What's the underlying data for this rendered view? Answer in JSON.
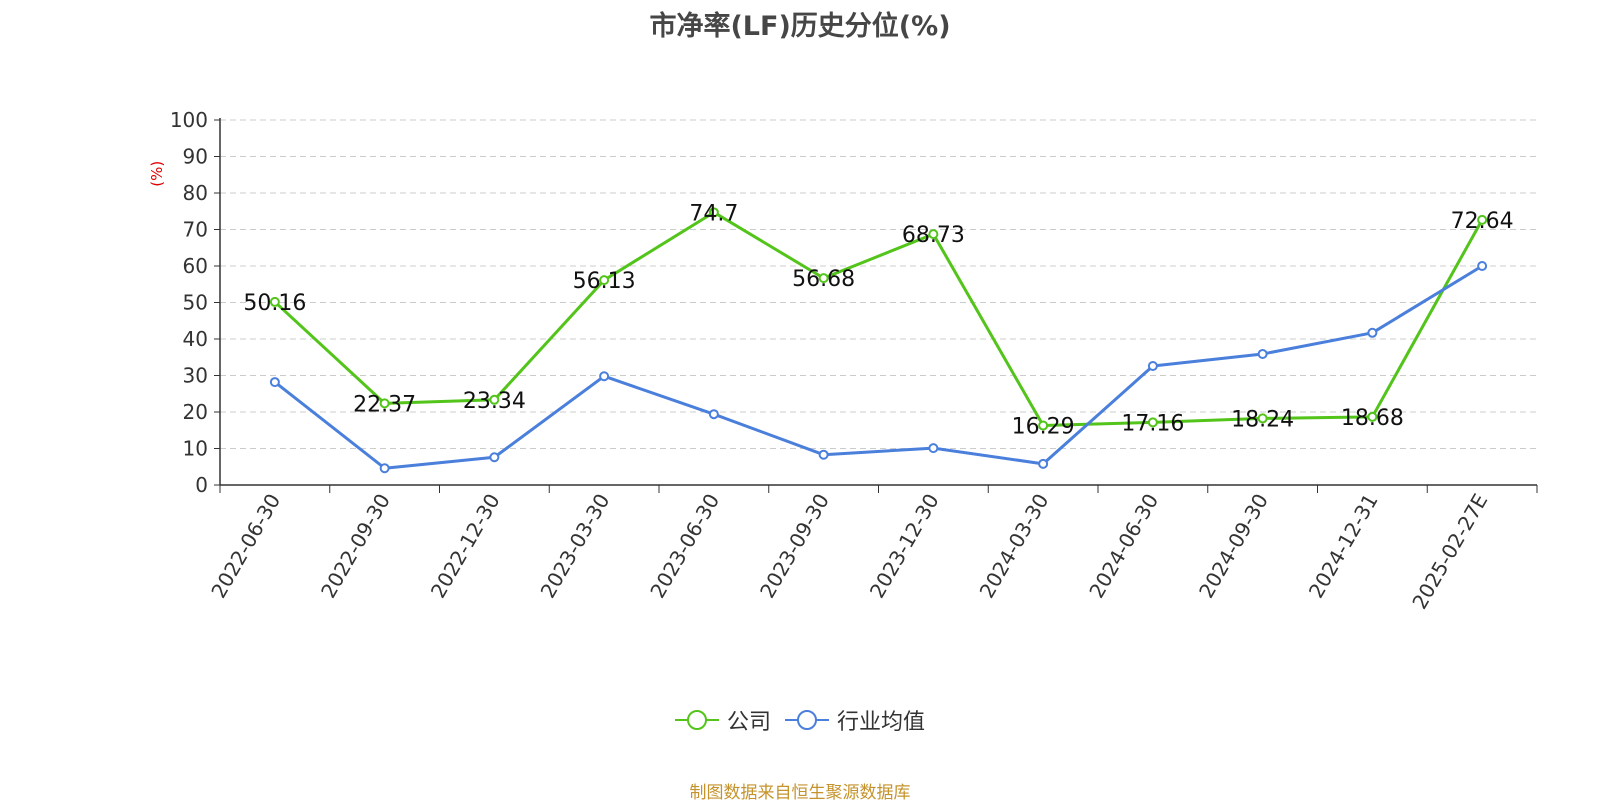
{
  "chart_data": {
    "type": "line",
    "title": "市净率(LF)历史分位(%)",
    "ylabel": "(%)",
    "xlabel": "",
    "ylim": [
      0,
      100
    ],
    "yticks": [
      0,
      10,
      20,
      30,
      40,
      50,
      60,
      70,
      80,
      90,
      100
    ],
    "grid": true,
    "legend_position": "bottom",
    "categories": [
      "2022-06-30",
      "2022-09-30",
      "2022-12-30",
      "2023-03-30",
      "2023-06-30",
      "2023-09-30",
      "2023-12-30",
      "2024-03-30",
      "2024-06-30",
      "2024-09-30",
      "2024-12-31",
      "2025-02-27E"
    ],
    "series": [
      {
        "name": "公司",
        "color": "#52c41a",
        "values": [
          50.16,
          22.37,
          23.34,
          56.13,
          74.7,
          56.68,
          68.73,
          16.29,
          17.16,
          18.24,
          18.68,
          72.64
        ],
        "labels": [
          "50.16",
          "22.37",
          "23.34",
          "56.13",
          "74.7",
          "56.68",
          "68.73",
          "16.29",
          "17.16",
          "18.24",
          "18.68",
          "72.64"
        ]
      },
      {
        "name": "行业均值",
        "color": "#4a7fdc",
        "values": [
          28.2,
          4.6,
          7.6,
          29.8,
          19.4,
          8.3,
          10.1,
          5.8,
          32.6,
          35.9,
          41.7,
          60.0
        ]
      }
    ]
  },
  "source_note": "制图数据来自恒生聚源数据库"
}
